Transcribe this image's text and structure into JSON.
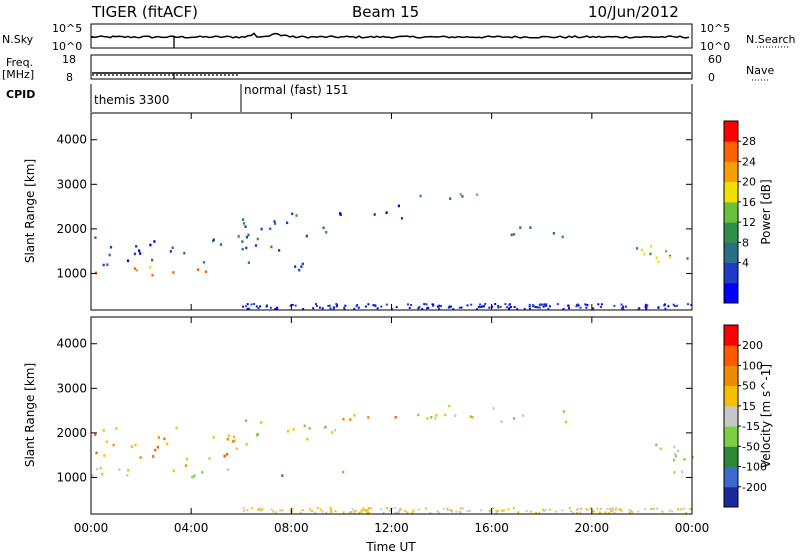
{
  "header": {
    "radar": "TIGER (fitACF)",
    "beam": "Beam 15",
    "date": "10/Jun/2012"
  },
  "strips": {
    "nsky_label": "N.Sky",
    "nsky_ticks": [
      "10^5",
      "10^0"
    ],
    "nsearch_label": "N.Search",
    "nsearch_ticks": [
      "10^5",
      "10^0"
    ],
    "freq_label_1": "Freq.",
    "freq_label_2": "[MHz]",
    "freq_ticks": [
      "18",
      "8"
    ],
    "nave_label": "Nave",
    "nave_ticks": [
      "60",
      "0"
    ],
    "cpid_label": "CPID",
    "cpid_segments": [
      "themis 3300",
      "normal (fast) 151"
    ]
  },
  "chart_data": [
    {
      "type": "heatmap",
      "name": "Power",
      "ylabel": "Slant Range [km]",
      "xlabel": "",
      "xlim_hours": [
        0,
        24
      ],
      "ylim": [
        180,
        4600
      ],
      "x_tick_labels": [
        "00:00",
        "04:00",
        "08:00",
        "12:00",
        "16:00",
        "20:00",
        "00:00"
      ],
      "y_ticks": [
        1000,
        2000,
        3000,
        4000
      ],
      "colorbar_label": "Power [dB]",
      "colorbar_ticks": [
        "28",
        "24",
        "20",
        "16",
        "12",
        "8",
        "4"
      ],
      "colors": [
        "#0000ff",
        "#1e3cc8",
        "#2a6e8a",
        "#2f8f4a",
        "#6ac23a",
        "#f0e000",
        "#f5a000",
        "#ff6000",
        "#ff0000"
      ],
      "scatter_regions": [
        {
          "from_h": 0.0,
          "to_h": 5.8,
          "center_km": 1050,
          "width_km": 220,
          "level": 6
        },
        {
          "from_h": 0.0,
          "to_h": 3.0,
          "center_km": 1500,
          "width_km": 700,
          "level": 1
        },
        {
          "from_h": 3.0,
          "to_h": 7.5,
          "center_km": 1600,
          "width_km": 600,
          "level": 2
        },
        {
          "from_h": 5.8,
          "to_h": 10.0,
          "center_km": 2100,
          "width_km": 600,
          "level": 2
        },
        {
          "from_h": 7.0,
          "to_h": 10.5,
          "center_km": 1150,
          "width_km": 200,
          "level": 1
        },
        {
          "from_h": 9.5,
          "to_h": 12.5,
          "center_km": 2350,
          "width_km": 350,
          "level": 1
        },
        {
          "from_h": 12.5,
          "to_h": 15.5,
          "center_km": 2750,
          "width_km": 250,
          "level": 3
        },
        {
          "from_h": 15.5,
          "to_h": 19.0,
          "center_km": 2000,
          "width_km": 300,
          "level": 3
        },
        {
          "from_h": 21.5,
          "to_h": 24.0,
          "center_km": 1400,
          "width_km": 700,
          "level": 4
        }
      ]
    },
    {
      "type": "heatmap",
      "name": "Velocity",
      "ylabel": "Slant Range [km]",
      "xlabel": "Time UT",
      "xlim_hours": [
        0,
        24
      ],
      "ylim": [
        180,
        4600
      ],
      "x_tick_labels": [
        "00:00",
        "04:00",
        "08:00",
        "12:00",
        "16:00",
        "20:00",
        "00:00"
      ],
      "y_ticks": [
        1000,
        2000,
        3000,
        4000
      ],
      "colorbar_label": "Velocity [m s^-1]",
      "colorbar_ticks": [
        "200",
        "100",
        "50",
        "15",
        "-15",
        "-50",
        "-100",
        "-200"
      ],
      "colors": [
        "#1a2a9c",
        "#3a6ad0",
        "#2a8a3a",
        "#7ad040",
        "#c8c8c8",
        "#f5c000",
        "#f08a00",
        "#ff5a00",
        "#ff0000"
      ],
      "scatter_regions": [
        {
          "from_h": 0.0,
          "to_h": 6.0,
          "center_km": 1150,
          "width_km": 300,
          "level": 4
        },
        {
          "from_h": 0.0,
          "to_h": 6.0,
          "center_km": 1700,
          "width_km": 900,
          "level": 6
        },
        {
          "from_h": 6.0,
          "to_h": 10.0,
          "center_km": 2100,
          "width_km": 600,
          "level": 4
        },
        {
          "from_h": 7.5,
          "to_h": 10.2,
          "center_km": 1100,
          "width_km": 150,
          "level": 3
        },
        {
          "from_h": 10.0,
          "to_h": 12.5,
          "center_km": 2400,
          "width_km": 300,
          "level": 6
        },
        {
          "from_h": 12.5,
          "to_h": 19.0,
          "center_km": 2400,
          "width_km": 400,
          "level": 4
        },
        {
          "from_h": 21.5,
          "to_h": 24.0,
          "center_km": 1500,
          "width_km": 700,
          "level": 4
        }
      ]
    }
  ]
}
